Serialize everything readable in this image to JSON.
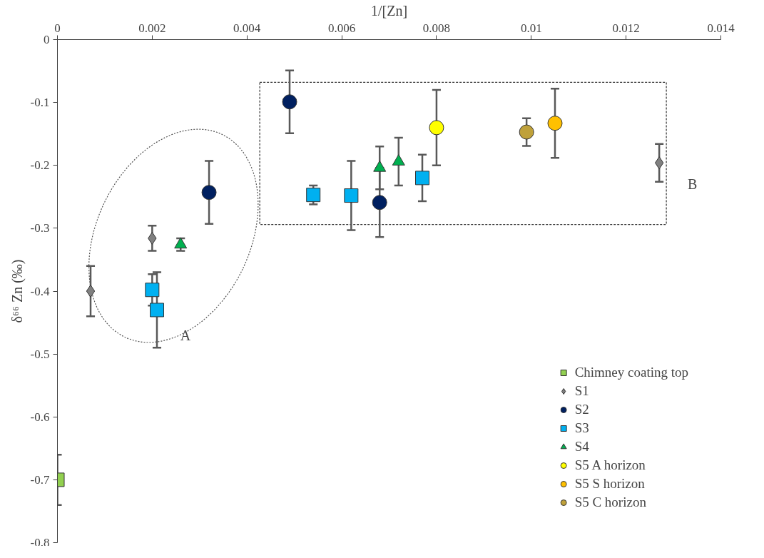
{
  "chart_data": {
    "type": "scatter",
    "xlabel": "1/[Zn]",
    "ylabel": "δ⁶⁶ Zn (‰)",
    "xlim": [
      0,
      0.014
    ],
    "xticks": [
      0,
      0.002,
      0.004,
      0.006,
      0.008,
      0.01,
      0.012,
      0.014
    ],
    "ylim": [
      -0.8,
      0
    ],
    "yticks": [
      0,
      -0.1,
      -0.2,
      -0.3,
      -0.4,
      -0.5,
      -0.6,
      -0.7,
      -0.8
    ],
    "grid": false,
    "legend": "bottom right",
    "series": [
      {
        "name": "Chimney coating top",
        "color": "#92d050",
        "marker": "square",
        "x": [
          0
        ],
        "values": [
          -0.7
        ],
        "errors": [
          0.04
        ]
      },
      {
        "name": "S1",
        "color": "#808080",
        "marker": "diamond",
        "x": [
          0.0007,
          0.002,
          0.0127
        ],
        "values": [
          -0.4,
          -0.316,
          -0.196
        ],
        "errors": [
          0.04,
          0.02,
          0.03
        ]
      },
      {
        "name": "S2",
        "color": "#002060",
        "marker": "circle",
        "x": [
          0.0032,
          0.0049,
          0.0068
        ],
        "values": [
          -0.243,
          -0.099,
          -0.259
        ],
        "errors": [
          0.05,
          0.05,
          0.055
        ]
      },
      {
        "name": "S3",
        "color": "#00b0f0",
        "marker": "square",
        "x": [
          0.002,
          0.0021,
          0.0054,
          0.0062,
          0.0077
        ],
        "values": [
          -0.398,
          -0.43,
          -0.247,
          -0.248,
          -0.22
        ],
        "errors": [
          0.025,
          0.06,
          0.015,
          0.055,
          0.037
        ]
      },
      {
        "name": "S4",
        "color": "#00b050",
        "marker": "triangle",
        "x": [
          0.0026,
          0.0068,
          0.0072
        ],
        "values": [
          -0.326,
          -0.204,
          -0.194
        ],
        "errors": [
          0.01,
          0.034,
          0.038
        ]
      },
      {
        "name": "S5 A horizon",
        "color": "#ffff00",
        "marker": "circle",
        "x": [
          0.008
        ],
        "values": [
          -0.14
        ],
        "errors": [
          0.06
        ]
      },
      {
        "name": "S5 S horizon",
        "color": "#ffc000",
        "marker": "circle",
        "x": [
          0.0105
        ],
        "values": [
          -0.133
        ],
        "errors": [
          0.055
        ]
      },
      {
        "name": "S5 C horizon",
        "color": "#bfa13a",
        "marker": "circle",
        "x": [
          0.0099
        ],
        "values": [
          -0.147
        ],
        "errors": [
          0.022
        ]
      }
    ],
    "annotations": [
      "A",
      "B"
    ]
  }
}
